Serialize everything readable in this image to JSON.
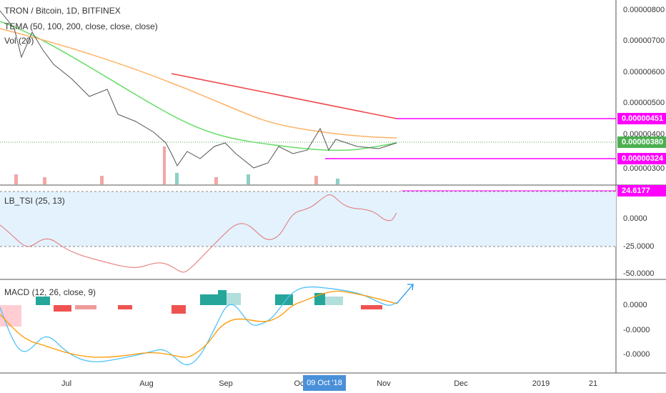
{
  "header": {
    "title": "TRON / Bitcoin, 1D, BITFINEX",
    "indicators": [
      "TEMA (50, 100, 200, close, close, close)",
      "Vol (20)"
    ]
  },
  "main_axis": {
    "labels": [
      "0.00000800",
      "0.00000700",
      "0.00000600",
      "0.00000500",
      "0.00000400",
      "0.00000300"
    ],
    "tags": [
      "0.00000451",
      "0.00000380",
      "0.00000324"
    ]
  },
  "tsi": {
    "title": "LB_TSI (25, 13)",
    "tag": "24.6177",
    "labels": [
      "0.0000",
      "-25.0000",
      "-50.0000"
    ]
  },
  "macd": {
    "title": "MACD (12, 26, close, 9)",
    "labels": [
      "0.0000",
      "-0.0000",
      "-0.0000"
    ]
  },
  "time_axis": {
    "labels": [
      "Jul",
      "Aug",
      "Sep",
      "Oct",
      "Nov",
      "Dec",
      "2019",
      "21"
    ],
    "crosshair": "09 Oct '18"
  }
}
